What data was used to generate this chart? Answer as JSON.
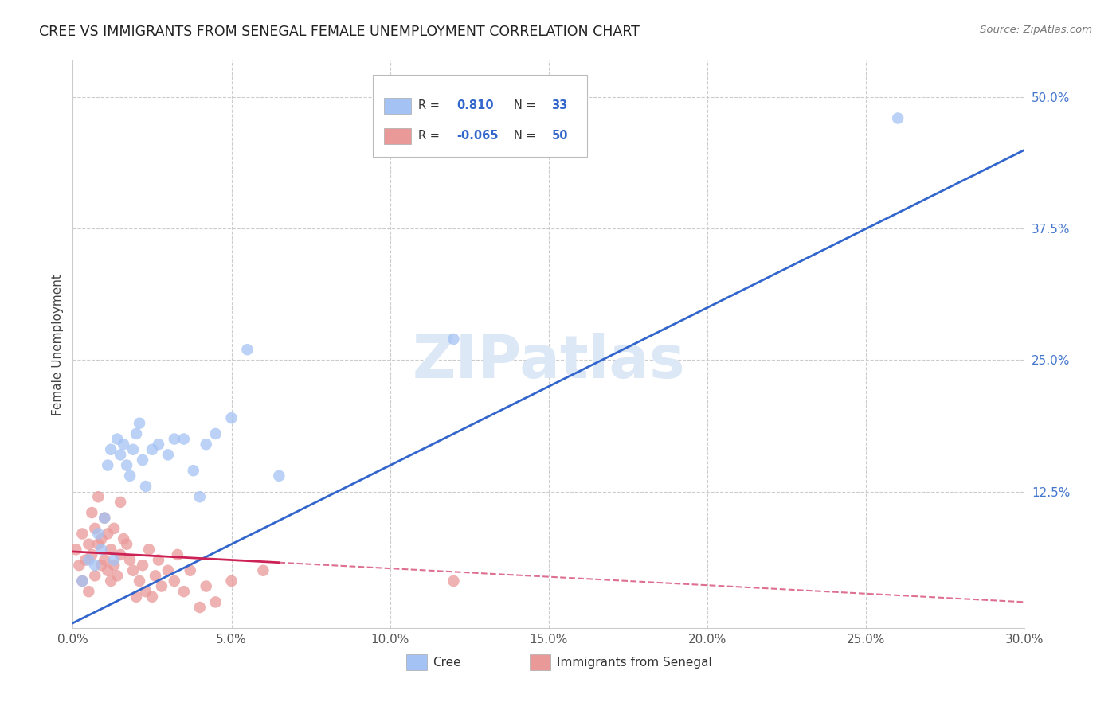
{
  "title": "CREE VS IMMIGRANTS FROM SENEGAL FEMALE UNEMPLOYMENT CORRELATION CHART",
  "source": "Source: ZipAtlas.com",
  "ylabel": "Female Unemployment",
  "xlim": [
    0.0,
    0.3
  ],
  "ylim": [
    -0.005,
    0.535
  ],
  "xticks": [
    0.0,
    0.05,
    0.1,
    0.15,
    0.2,
    0.25,
    0.3
  ],
  "yticks_right": [
    0.125,
    0.25,
    0.375,
    0.5
  ],
  "cree_R": 0.81,
  "cree_N": 33,
  "senegal_R": -0.065,
  "senegal_N": 50,
  "cree_color": "#a4c2f4",
  "senegal_color": "#ea9999",
  "cree_line_color": "#3366cc",
  "senegal_line_color": "#cc2255",
  "watermark": "ZIPatlas",
  "watermark_color": "#dce8f5",
  "cree_x": [
    0.005,
    0.007,
    0.008,
    0.009,
    0.01,
    0.011,
    0.012,
    0.013,
    0.014,
    0.015,
    0.016,
    0.017,
    0.018,
    0.019,
    0.02,
    0.021,
    0.022,
    0.023,
    0.025,
    0.027,
    0.03,
    0.032,
    0.035,
    0.038,
    0.04,
    0.042,
    0.045,
    0.05,
    0.055,
    0.065,
    0.12,
    0.26,
    0.003
  ],
  "cree_y": [
    0.06,
    0.055,
    0.085,
    0.07,
    0.1,
    0.15,
    0.165,
    0.06,
    0.175,
    0.16,
    0.17,
    0.15,
    0.14,
    0.165,
    0.18,
    0.19,
    0.155,
    0.13,
    0.165,
    0.17,
    0.16,
    0.175,
    0.175,
    0.145,
    0.12,
    0.17,
    0.18,
    0.195,
    0.26,
    0.14,
    0.27,
    0.48,
    0.04
  ],
  "senegal_x": [
    0.001,
    0.002,
    0.003,
    0.003,
    0.004,
    0.005,
    0.005,
    0.006,
    0.006,
    0.007,
    0.007,
    0.008,
    0.008,
    0.009,
    0.009,
    0.01,
    0.01,
    0.011,
    0.011,
    0.012,
    0.012,
    0.013,
    0.013,
    0.014,
    0.015,
    0.015,
    0.016,
    0.017,
    0.018,
    0.019,
    0.02,
    0.021,
    0.022,
    0.023,
    0.024,
    0.025,
    0.026,
    0.027,
    0.028,
    0.03,
    0.032,
    0.033,
    0.035,
    0.037,
    0.04,
    0.042,
    0.045,
    0.05,
    0.06,
    0.12
  ],
  "senegal_y": [
    0.07,
    0.055,
    0.085,
    0.04,
    0.06,
    0.075,
    0.03,
    0.065,
    0.105,
    0.09,
    0.045,
    0.12,
    0.075,
    0.08,
    0.055,
    0.1,
    0.06,
    0.05,
    0.085,
    0.07,
    0.04,
    0.055,
    0.09,
    0.045,
    0.065,
    0.115,
    0.08,
    0.075,
    0.06,
    0.05,
    0.025,
    0.04,
    0.055,
    0.03,
    0.07,
    0.025,
    0.045,
    0.06,
    0.035,
    0.05,
    0.04,
    0.065,
    0.03,
    0.05,
    0.015,
    0.035,
    0.02,
    0.04,
    0.05,
    0.04
  ]
}
